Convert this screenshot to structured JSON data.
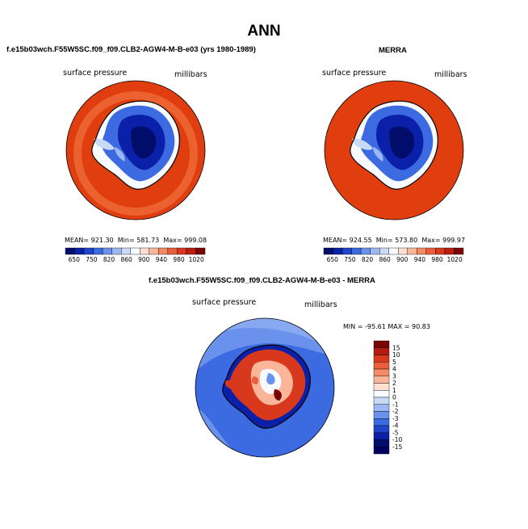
{
  "page": {
    "title": "ANN"
  },
  "panels": [
    {
      "title": "f.e15b03wch.F55W5SC.f09_f09.CLB2-AGW4-M-B-e03 (yrs 1980-1989)",
      "variable": "surface pressure",
      "units": "millibars",
      "stats": {
        "mean_label": "MEAN=",
        "mean": "921.30",
        "min_label": "Min=",
        "min": "581.73",
        "max_label": "Max=",
        "max": "999.08"
      }
    },
    {
      "title": "MERRA",
      "variable": "surface pressure",
      "units": "millibars",
      "stats": {
        "mean_label": "MEAN=",
        "mean": "924.55",
        "min_label": "Min=",
        "min": "573.80",
        "max_label": "Max=",
        "max": "999.97"
      }
    },
    {
      "title": "f.e15b03wch.F55W5SC.f09_f09.CLB2-AGW4-M-B-e03 - MERRA",
      "variable": "surface pressure",
      "units": "millibars",
      "minmax": "MIN = -95.61 MAX =  90.83"
    }
  ],
  "colorbar_top": {
    "labels": [
      "650",
      "750",
      "820",
      "860",
      "900",
      "940",
      "980",
      "1020"
    ],
    "colors": [
      "#000d6b",
      "#0a20a8",
      "#1f45cc",
      "#3c6ae0",
      "#6a92ec",
      "#9cb8f4",
      "#c9daf9",
      "#f7fbff",
      "#fde0d2",
      "#fbb69a",
      "#f38a63",
      "#ea5f39",
      "#d8381c",
      "#ba1e10",
      "#7a0404"
    ]
  },
  "colorbar_diff": {
    "labels": [
      "15",
      "10",
      "5",
      "4",
      "3",
      "2",
      "1",
      "0",
      "-1",
      "-2",
      "-3",
      "-4",
      "-5",
      "-10",
      "-15"
    ],
    "colors": [
      "#7a0404",
      "#b31a10",
      "#d8381c",
      "#ea5f39",
      "#f38a63",
      "#fbb69a",
      "#fde0d2",
      "#f7fbff",
      "#c9daf9",
      "#9cb8f4",
      "#6a92ec",
      "#3c6ae0",
      "#1f45cc",
      "#0a20a8",
      "#000d6b",
      "#000060"
    ]
  }
}
